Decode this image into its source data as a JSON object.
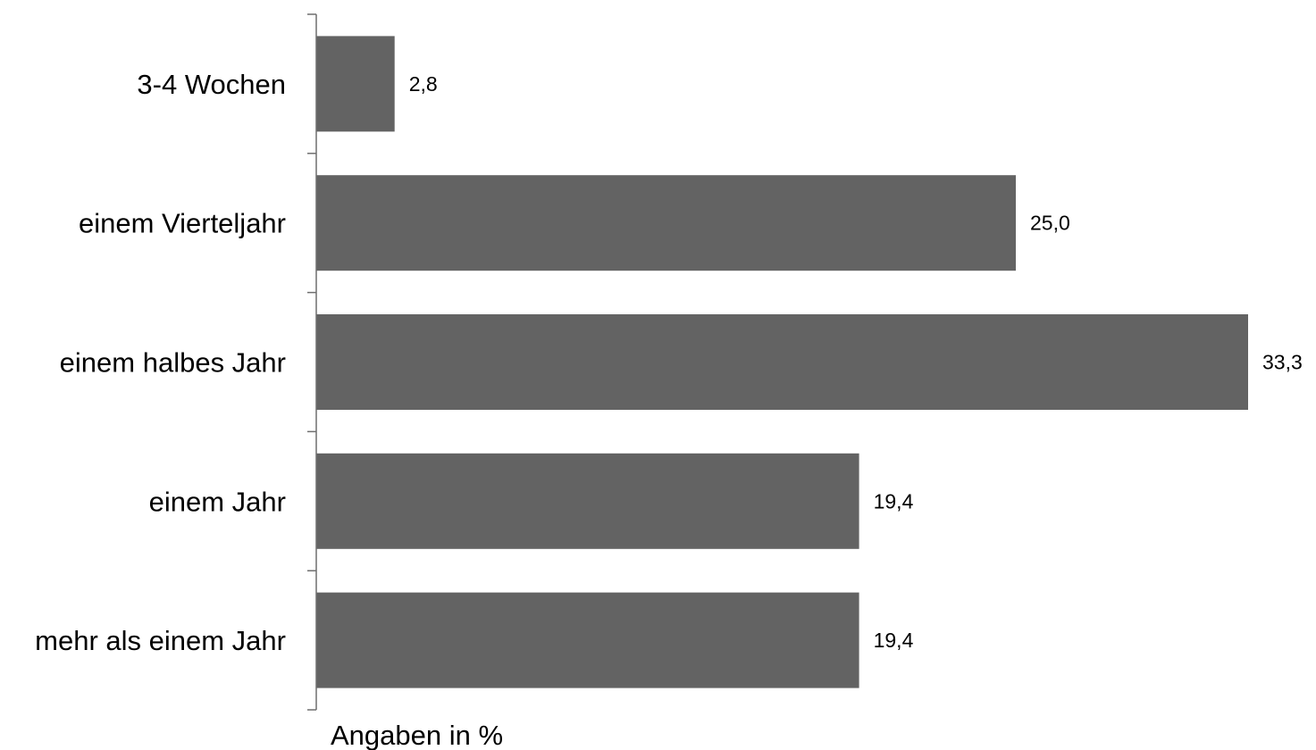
{
  "chart_data": {
    "type": "bar",
    "orientation": "horizontal",
    "categories": [
      "3-4 Wochen",
      "einem Vierteljahr",
      "einem halbes Jahr",
      "einem Jahr",
      "mehr als einem Jahr"
    ],
    "values": [
      2.8,
      25.0,
      33.3,
      19.4,
      19.4
    ],
    "value_labels": [
      "2,8",
      "25,0",
      "33,3",
      "19,4",
      "19,4"
    ],
    "xlabel": "Angaben in %",
    "ylabel": "",
    "xlim": [
      0,
      33.3
    ],
    "grid": false,
    "legend": "none",
    "bar_color": "#636363"
  }
}
